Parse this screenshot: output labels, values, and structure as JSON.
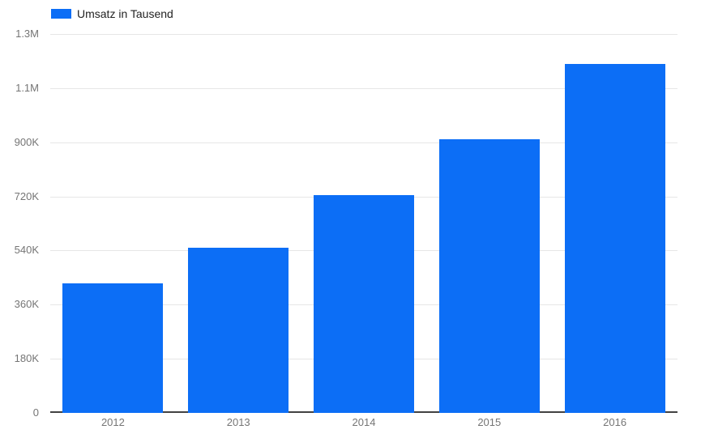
{
  "chart": {
    "colors": {
      "background": "#ffffff",
      "bar": "#0c6ef6",
      "gridline": "#e6e6e6",
      "baseline": "#424242",
      "axis_label_text": "#757575",
      "legend_text": "#222222"
    },
    "legend": {
      "label": "Umsatz in Tausend",
      "position": "top-left"
    }
  },
  "chart_data": {
    "type": "bar",
    "title": "",
    "xlabel": "",
    "ylabel": "",
    "categories": [
      "2012",
      "2013",
      "2014",
      "2015",
      "2016"
    ],
    "series": [
      {
        "name": "Umsatz in Tausend",
        "values": [
          430000,
          550000,
          725000,
          910000,
          1160000
        ]
      }
    ],
    "ylim": [
      0,
      1260000
    ],
    "y_ticks": [
      {
        "value": 0,
        "label": "0"
      },
      {
        "value": 180000,
        "label": "180K"
      },
      {
        "value": 360000,
        "label": "360K"
      },
      {
        "value": 540000,
        "label": "540K"
      },
      {
        "value": 720000,
        "label": "720K"
      },
      {
        "value": 900000,
        "label": "900K"
      },
      {
        "value": 1080000,
        "label": "1.1M"
      },
      {
        "value": 1260000,
        "label": "1.3M"
      }
    ],
    "grid": true,
    "legend_position": "top-left"
  }
}
